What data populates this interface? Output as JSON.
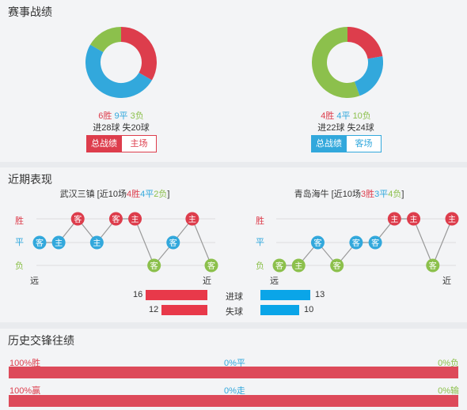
{
  "section1": {
    "title": "赛事战绩",
    "home": {
      "wins": "6胜",
      "draws": "9平",
      "losses": "3负",
      "goals": "进28球 失20球",
      "tab_active": "总战绩",
      "tab_other": "主场",
      "donut": [
        {
          "value": 6,
          "color": "#dd3d4c"
        },
        {
          "value": 9,
          "color": "#32a8dc"
        },
        {
          "value": 3,
          "color": "#8cc04c"
        }
      ]
    },
    "away": {
      "wins": "4胜",
      "draws": "4平",
      "losses": "10负",
      "goals": "进22球 失24球",
      "tab_active": "总战绩",
      "tab_other": "客场",
      "donut": [
        {
          "value": 4,
          "color": "#dd3d4c"
        },
        {
          "value": 4,
          "color": "#32a8dc"
        },
        {
          "value": 10,
          "color": "#8cc04c"
        }
      ]
    }
  },
  "section2": {
    "title": "近期表现",
    "row_labels": {
      "win": "胜",
      "draw": "平",
      "loss": "负"
    },
    "far": "远",
    "near": "近",
    "home": {
      "team": "武汉三镇",
      "sum_open": " [近10场",
      "wins": "4胜",
      "draws": "4平",
      "losses": "2负",
      "sum_close": "]",
      "results": [
        "d",
        "d",
        "w",
        "d",
        "w",
        "w",
        "l",
        "d",
        "w",
        "l"
      ],
      "venues": [
        "客",
        "主",
        "客",
        "主",
        "客",
        "主",
        "客",
        "客",
        "主",
        "客"
      ]
    },
    "away": {
      "team": "青岛海牛",
      "sum_open": " [近10场",
      "wins": "3胜",
      "draws": "3平",
      "losses": "4负",
      "sum_close": "]",
      "results": [
        "l",
        "l",
        "d",
        "l",
        "d",
        "d",
        "w",
        "w",
        "l",
        "w"
      ],
      "venues": [
        "客",
        "主",
        "客",
        "客",
        "客",
        "客",
        "主",
        "主",
        "客",
        "主"
      ]
    },
    "goals_for_label": "进球",
    "goals_against_label": "失球",
    "home_goals_for": 16,
    "home_goals_against": 12,
    "away_goals_for": 13,
    "away_goals_against": 10
  },
  "section3": {
    "title": "历史交锋往绩",
    "row1": {
      "left": "100%胜",
      "mid": "0%平",
      "right": "0%负",
      "left_pct": 100
    },
    "row2": {
      "left": "100%赢",
      "mid": "0%走",
      "right": "0%输",
      "left_pct": 100
    }
  }
}
